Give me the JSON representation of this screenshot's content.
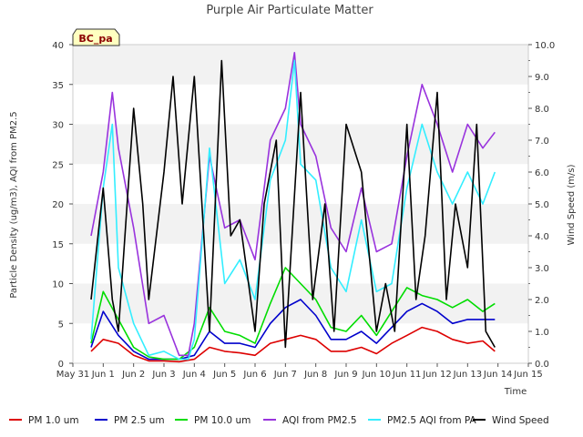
{
  "chart_data": {
    "type": "line",
    "title": "Purple Air Particulate Matter",
    "xlabel": "Time",
    "ylabel_left": "Particle Density (ug/m3), AQI from PM2.5",
    "ylabel_right": "Wind Speed (m/s)",
    "site_badge": "BC_pa",
    "xlim": [
      0,
      15
    ],
    "ylim_left": [
      0,
      40
    ],
    "ylim_right": [
      0,
      10
    ],
    "x_ticks": [
      {
        "v": 0,
        "label": "May 31"
      },
      {
        "v": 1,
        "label": "Jun 1"
      },
      {
        "v": 2,
        "label": "Jun 2"
      },
      {
        "v": 3,
        "label": "Jun 3"
      },
      {
        "v": 4,
        "label": "Jun 4"
      },
      {
        "v": 5,
        "label": "Jun 5"
      },
      {
        "v": 6,
        "label": "Jun 6"
      },
      {
        "v": 7,
        "label": "Jun 7"
      },
      {
        "v": 8,
        "label": "Jun 8"
      },
      {
        "v": 9,
        "label": "Jun 9"
      },
      {
        "v": 10,
        "label": "Jun 10"
      },
      {
        "v": 11,
        "label": "Jun 11"
      },
      {
        "v": 12,
        "label": "Jun 12"
      },
      {
        "v": 13,
        "label": "Jun 13"
      },
      {
        "v": 14,
        "label": "Jun 14"
      },
      {
        "v": 15,
        "label": "Jun 15"
      }
    ],
    "y_ticks_left": [
      0,
      5,
      10,
      15,
      20,
      25,
      30,
      35,
      40
    ],
    "y_ticks_right": [
      "0.0",
      "1.0",
      "2.0",
      "3.0",
      "4.0",
      "5.0",
      "6.0",
      "7.0",
      "8.0",
      "9.0",
      "10.0"
    ],
    "grid": "horizontal bands",
    "legend_position": "bottom",
    "series": [
      {
        "name": "PM 1.0 um",
        "color": "#dd0000",
        "axis": "left",
        "x": [
          0.6,
          1.0,
          1.5,
          2.0,
          2.5,
          3.0,
          3.5,
          4.0,
          4.5,
          5.0,
          5.5,
          6.0,
          6.5,
          7.0,
          7.5,
          8.0,
          8.5,
          9.0,
          9.5,
          10.0,
          10.5,
          11.0,
          11.5,
          12.0,
          12.5,
          13.0,
          13.5,
          13.9
        ],
        "y": [
          1.5,
          3.0,
          2.5,
          1.0,
          0.3,
          0.3,
          0.2,
          0.5,
          2.0,
          1.5,
          1.3,
          1.0,
          2.5,
          3.0,
          3.5,
          3.0,
          1.5,
          1.5,
          2.0,
          1.2,
          2.5,
          3.5,
          4.5,
          4.0,
          3.0,
          2.5,
          2.8,
          1.5
        ]
      },
      {
        "name": "PM 2.5 um",
        "color": "#0000cc",
        "axis": "left",
        "x": [
          0.6,
          1.0,
          1.5,
          2.0,
          2.5,
          3.0,
          3.5,
          4.0,
          4.5,
          5.0,
          5.5,
          6.0,
          6.5,
          7.0,
          7.5,
          8.0,
          8.5,
          9.0,
          9.5,
          10.0,
          10.5,
          11.0,
          11.5,
          12.0,
          12.5,
          13.0,
          13.5,
          13.9
        ],
        "y": [
          2.0,
          6.5,
          3.5,
          1.5,
          0.5,
          0.5,
          0.5,
          1.0,
          4.0,
          2.5,
          2.5,
          2.0,
          5.0,
          7.0,
          8.0,
          6.0,
          3.0,
          3.0,
          4.0,
          2.5,
          4.5,
          6.5,
          7.5,
          6.5,
          5.0,
          5.5,
          5.5,
          5.5
        ]
      },
      {
        "name": "PM 10.0 um",
        "color": "#00dd00",
        "axis": "left",
        "x": [
          0.6,
          1.0,
          1.5,
          2.0,
          2.5,
          3.0,
          3.5,
          4.0,
          4.5,
          5.0,
          5.5,
          6.0,
          6.5,
          7.0,
          7.5,
          8.0,
          8.5,
          9.0,
          9.5,
          10.0,
          10.5,
          11.0,
          11.5,
          12.0,
          12.5,
          13.0,
          13.5,
          13.9
        ],
        "y": [
          2.5,
          9.0,
          5.5,
          2.0,
          0.8,
          0.5,
          0.5,
          2.0,
          7.0,
          4.0,
          3.5,
          2.5,
          7.5,
          12.0,
          10.0,
          8.0,
          4.5,
          4.0,
          6.0,
          3.5,
          6.5,
          9.5,
          8.5,
          8.0,
          7.0,
          8.0,
          6.5,
          7.5
        ]
      },
      {
        "name": "AQI from PM2.5",
        "color": "#9933dd",
        "axis": "left",
        "x": [
          0.6,
          1.0,
          1.3,
          1.5,
          2.0,
          2.5,
          3.0,
          3.5,
          3.8,
          4.0,
          4.5,
          5.0,
          5.5,
          6.0,
          6.5,
          7.0,
          7.3,
          7.5,
          8.0,
          8.5,
          9.0,
          9.5,
          10.0,
          10.5,
          11.0,
          11.5,
          12.0,
          12.5,
          13.0,
          13.5,
          13.9
        ],
        "y": [
          16.0,
          24.0,
          34.0,
          27.0,
          17.0,
          5.0,
          6.0,
          1.0,
          1.0,
          5.0,
          26.0,
          17.0,
          18.0,
          13.0,
          28.0,
          32.0,
          39.0,
          30.0,
          26.0,
          17.0,
          14.0,
          22.0,
          14.0,
          15.0,
          26.0,
          35.0,
          30.0,
          24.0,
          30.0,
          27.0,
          29.0
        ]
      },
      {
        "name": "PM2.5 AQI from PA",
        "color": "#33eeff",
        "axis": "left",
        "x": [
          0.6,
          1.0,
          1.3,
          1.5,
          2.0,
          2.5,
          3.0,
          3.5,
          3.8,
          4.0,
          4.5,
          5.0,
          5.5,
          6.0,
          6.5,
          7.0,
          7.3,
          7.5,
          8.0,
          8.5,
          9.0,
          9.5,
          10.0,
          10.5,
          11.0,
          11.5,
          12.0,
          12.5,
          13.0,
          13.5,
          13.9
        ],
        "y": [
          3.0,
          22.0,
          30.0,
          12.0,
          5.0,
          1.0,
          1.5,
          0.5,
          0.5,
          3.0,
          27.0,
          10.0,
          13.0,
          8.0,
          23.0,
          28.0,
          38.0,
          25.0,
          23.0,
          12.0,
          9.0,
          18.0,
          9.0,
          10.0,
          22.0,
          30.0,
          24.0,
          20.0,
          24.0,
          20.0,
          24.0
        ]
      },
      {
        "name": "Wind Speed",
        "color": "#000000",
        "axis": "right",
        "x": [
          0.6,
          1.0,
          1.3,
          1.5,
          2.0,
          2.3,
          2.5,
          3.0,
          3.3,
          3.6,
          4.0,
          4.5,
          4.9,
          5.2,
          5.5,
          6.0,
          6.3,
          6.7,
          7.0,
          7.5,
          7.9,
          8.3,
          8.6,
          9.0,
          9.5,
          10.0,
          10.3,
          10.6,
          11.0,
          11.3,
          11.6,
          12.0,
          12.3,
          12.6,
          13.0,
          13.3,
          13.6,
          13.9
        ],
        "y": [
          2.0,
          5.5,
          2.0,
          1.0,
          8.0,
          5.0,
          2.0,
          6.0,
          9.0,
          5.0,
          9.0,
          1.0,
          9.5,
          4.0,
          4.5,
          1.0,
          5.0,
          7.0,
          0.5,
          8.5,
          2.0,
          5.0,
          1.0,
          7.5,
          6.0,
          1.0,
          2.5,
          1.0,
          7.5,
          2.0,
          4.0,
          8.5,
          2.0,
          5.0,
          3.0,
          7.5,
          1.0,
          0.5
        ]
      }
    ]
  }
}
